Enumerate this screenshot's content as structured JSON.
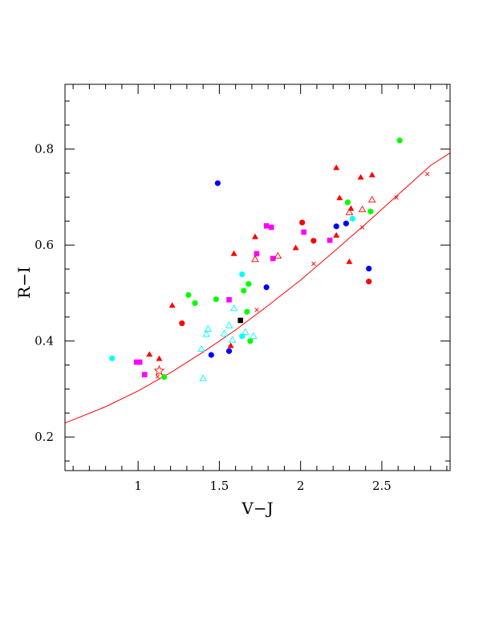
{
  "chart_data": {
    "type": "scatter",
    "xlabel": "V−J",
    "ylabel": "R−I",
    "xlim": [
      0.55,
      2.92
    ],
    "ylim": [
      0.13,
      0.935
    ],
    "x_ticks": [
      {
        "v": 1.0,
        "label": "1"
      },
      {
        "v": 1.5,
        "label": "1.5"
      },
      {
        "v": 2.0,
        "label": "2"
      },
      {
        "v": 2.5,
        "label": "2.5"
      }
    ],
    "y_ticks": [
      {
        "v": 0.2,
        "label": "0.2"
      },
      {
        "v": 0.4,
        "label": "0.4"
      },
      {
        "v": 0.6,
        "label": "0.6"
      },
      {
        "v": 0.8,
        "label": "0.8"
      }
    ],
    "colors": {
      "red": "#ff0000",
      "blue": "#0000ff",
      "green": "#00ff00",
      "cyan": "#00ffff",
      "magenta": "#ff00ff",
      "black": "#000000"
    },
    "fit_curve": {
      "color": "#ff0000",
      "points": [
        [
          0.55,
          0.229
        ],
        [
          0.8,
          0.263
        ],
        [
          1.0,
          0.296
        ],
        [
          1.2,
          0.334
        ],
        [
          1.4,
          0.377
        ],
        [
          1.6,
          0.423
        ],
        [
          1.8,
          0.474
        ],
        [
          2.0,
          0.527
        ],
        [
          2.2,
          0.585
        ],
        [
          2.4,
          0.644
        ],
        [
          2.6,
          0.705
        ],
        [
          2.8,
          0.766
        ],
        [
          2.92,
          0.792
        ]
      ]
    },
    "series": [
      {
        "marker": "filled-circle",
        "color": "red",
        "points": [
          [
            1.27,
            0.437
          ],
          [
            2.01,
            0.647
          ],
          [
            2.08,
            0.609
          ],
          [
            2.42,
            0.524
          ]
        ]
      },
      {
        "marker": "filled-circle",
        "color": "blue",
        "points": [
          [
            1.49,
            0.729
          ],
          [
            1.45,
            0.371
          ],
          [
            1.56,
            0.379
          ],
          [
            1.79,
            0.512
          ],
          [
            2.22,
            0.639
          ],
          [
            2.28,
            0.645
          ],
          [
            2.42,
            0.551
          ]
        ]
      },
      {
        "marker": "filled-circle",
        "color": "green",
        "points": [
          [
            1.31,
            0.496
          ],
          [
            1.35,
            0.479
          ],
          [
            1.48,
            0.487
          ],
          [
            1.16,
            0.325
          ],
          [
            1.65,
            0.505
          ],
          [
            1.67,
            0.461
          ],
          [
            1.68,
            0.519
          ],
          [
            1.69,
            0.4
          ],
          [
            2.29,
            0.689
          ],
          [
            2.43,
            0.67
          ],
          [
            2.61,
            0.818
          ]
        ]
      },
      {
        "marker": "filled-circle",
        "color": "cyan",
        "points": [
          [
            0.84,
            0.364
          ],
          [
            1.64,
            0.539
          ],
          [
            1.64,
            0.41
          ],
          [
            2.32,
            0.655
          ]
        ]
      },
      {
        "marker": "filled-square",
        "color": "magenta",
        "points": [
          [
            0.99,
            0.356
          ],
          [
            1.01,
            0.356
          ],
          [
            1.04,
            0.33
          ],
          [
            1.56,
            0.486
          ],
          [
            1.73,
            0.582
          ],
          [
            1.79,
            0.64
          ],
          [
            1.82,
            0.637
          ],
          [
            1.83,
            0.572
          ],
          [
            2.02,
            0.627
          ],
          [
            2.18,
            0.61
          ]
        ]
      },
      {
        "marker": "filled-square",
        "color": "black",
        "points": [
          [
            1.63,
            0.443
          ]
        ]
      },
      {
        "marker": "filled-triangle",
        "color": "red",
        "points": [
          [
            1.07,
            0.372
          ],
          [
            1.13,
            0.363
          ],
          [
            1.21,
            0.474
          ],
          [
            1.57,
            0.39
          ],
          [
            1.59,
            0.582
          ],
          [
            1.72,
            0.617
          ],
          [
            1.97,
            0.594
          ],
          [
            2.22,
            0.761
          ],
          [
            2.22,
            0.62
          ],
          [
            2.24,
            0.698
          ],
          [
            2.3,
            0.565
          ],
          [
            2.31,
            0.676
          ],
          [
            2.37,
            0.741
          ],
          [
            2.44,
            0.746
          ]
        ]
      },
      {
        "marker": "open-triangle",
        "color": "red",
        "points": [
          [
            1.72,
            0.57
          ],
          [
            1.86,
            0.577
          ],
          [
            2.3,
            0.668
          ],
          [
            2.38,
            0.674
          ],
          [
            2.44,
            0.694
          ]
        ]
      },
      {
        "marker": "open-triangle",
        "color": "cyan",
        "points": [
          [
            1.39,
            0.383
          ],
          [
            1.4,
            0.322
          ],
          [
            1.42,
            0.414
          ],
          [
            1.43,
            0.425
          ],
          [
            1.53,
            0.415
          ],
          [
            1.56,
            0.432
          ],
          [
            1.58,
            0.402
          ],
          [
            1.59,
            0.468
          ],
          [
            1.66,
            0.418
          ],
          [
            1.71,
            0.41
          ]
        ]
      },
      {
        "marker": "open-star",
        "color": "red",
        "points": [
          [
            1.13,
            0.338
          ]
        ]
      },
      {
        "marker": "cross",
        "color": "red",
        "points": [
          [
            1.12,
            0.326
          ],
          [
            1.73,
            0.465
          ],
          [
            2.08,
            0.561
          ],
          [
            2.38,
            0.637
          ],
          [
            2.59,
            0.699
          ],
          [
            2.78,
            0.748
          ]
        ]
      }
    ]
  }
}
